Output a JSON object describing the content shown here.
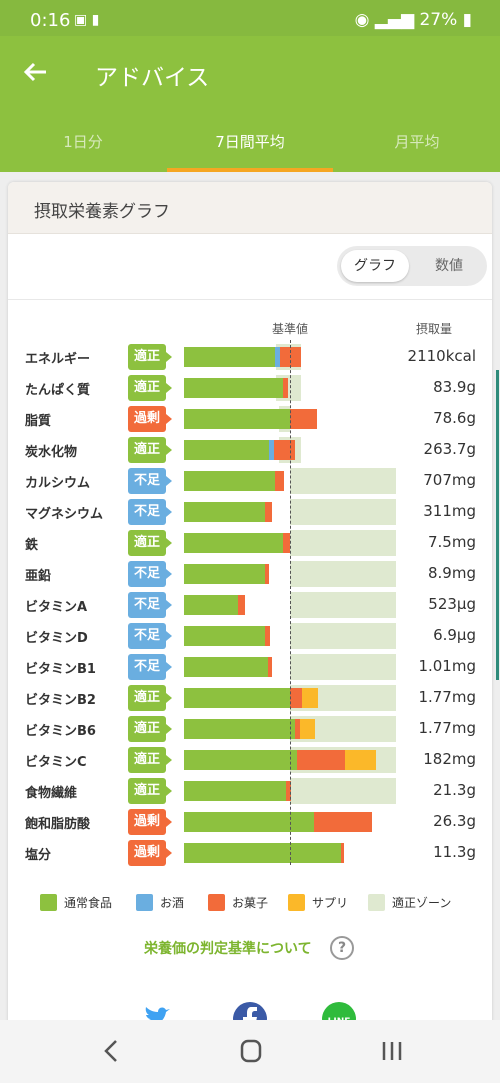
{
  "status": {
    "time": "0:16",
    "battery": "27%"
  },
  "appbar": {
    "title": "アドバイス"
  },
  "tabs": [
    {
      "label": "1日分",
      "active": false
    },
    {
      "label": "7日間平均",
      "active": true
    },
    {
      "label": "月平均",
      "active": false
    }
  ],
  "card": {
    "title": "摂取栄養素グラフ"
  },
  "toggle": {
    "graph": "グラフ",
    "value": "数値",
    "selected": "グラフ"
  },
  "headers": {
    "base": "基準値",
    "intake": "摂取量"
  },
  "status_colors": {
    "適正": "#8dc13f",
    "過剰": "#f26b3a",
    "不足": "#6aaee0"
  },
  "colors": {
    "food": "#8dc13f",
    "alcohol": "#6aaee0",
    "snack": "#f26b3a",
    "supplement": "#fbb829",
    "zone": "#dfe9d0"
  },
  "nutrients": [
    {
      "name": "エネルギー",
      "status": "適正",
      "amount": "2110kcal",
      "food": 0.86,
      "alcohol": 0.05,
      "snack": 0.19,
      "supplement": 0,
      "zone": [
        0.87,
        1.1
      ]
    },
    {
      "name": "たんぱく質",
      "status": "適正",
      "amount": "83.9g",
      "food": 0.93,
      "alcohol": 0,
      "snack": 0.05,
      "supplement": 0,
      "zone": [
        0.87,
        1.1
      ]
    },
    {
      "name": "脂質",
      "status": "過剰",
      "amount": "78.6g",
      "food": 1.0,
      "alcohol": 0,
      "snack": 0.25,
      "supplement": 0,
      "zone": [
        0.9,
        1.0
      ]
    },
    {
      "name": "炭水化物",
      "status": "適正",
      "amount": "263.7g",
      "food": 0.8,
      "alcohol": 0.05,
      "snack": 0.2,
      "supplement": 0,
      "zone": [
        0.9,
        1.1
      ]
    },
    {
      "name": "カルシウム",
      "status": "不足",
      "amount": "707mg",
      "food": 0.86,
      "alcohol": 0,
      "snack": 0.08,
      "supplement": 0,
      "zone": [
        1.0,
        2.0
      ]
    },
    {
      "name": "マグネシウム",
      "status": "不足",
      "amount": "311mg",
      "food": 0.76,
      "alcohol": 0,
      "snack": 0.07,
      "supplement": 0,
      "zone": [
        1.0,
        2.0
      ]
    },
    {
      "name": "鉄",
      "status": "適正",
      "amount": "7.5mg",
      "food": 0.93,
      "alcohol": 0,
      "snack": 0.07,
      "supplement": 0,
      "zone": [
        1.0,
        2.0
      ]
    },
    {
      "name": "亜鉛",
      "status": "不足",
      "amount": "8.9mg",
      "food": 0.76,
      "alcohol": 0,
      "snack": 0.04,
      "supplement": 0,
      "zone": [
        1.0,
        2.0
      ]
    },
    {
      "name": "ビタミンA",
      "status": "不足",
      "amount": "523μg",
      "food": 0.51,
      "alcohol": 0,
      "snack": 0.07,
      "supplement": 0,
      "zone": [
        1.0,
        2.0
      ]
    },
    {
      "name": "ビタミンD",
      "status": "不足",
      "amount": "6.9μg",
      "food": 0.76,
      "alcohol": 0,
      "snack": 0.05,
      "supplement": 0,
      "zone": [
        1.0,
        2.0
      ]
    },
    {
      "name": "ビタミンB1",
      "status": "不足",
      "amount": "1.01mg",
      "food": 0.79,
      "alcohol": 0,
      "snack": 0.04,
      "supplement": 0,
      "zone": [
        1.0,
        2.0
      ]
    },
    {
      "name": "ビタミンB2",
      "status": "適正",
      "amount": "1.77mg",
      "food": 1.0,
      "alcohol": 0,
      "snack": 0.11,
      "supplement": 0.15,
      "zone": [
        1.0,
        2.0
      ]
    },
    {
      "name": "ビタミンB6",
      "status": "適正",
      "amount": "1.77mg",
      "food": 1.05,
      "alcohol": 0,
      "snack": 0.04,
      "supplement": 0.15,
      "zone": [
        1.0,
        2.0
      ]
    },
    {
      "name": "ビタミンC",
      "status": "適正",
      "amount": "182mg",
      "food": 1.07,
      "alcohol": 0,
      "snack": 0.45,
      "supplement": 0.29,
      "zone": [
        1.0,
        2.0
      ]
    },
    {
      "name": "食物繊維",
      "status": "適正",
      "amount": "21.3g",
      "food": 0.96,
      "alcohol": 0,
      "snack": 0.05,
      "supplement": 0,
      "zone": [
        1.0,
        2.0
      ]
    },
    {
      "name": "飽和脂肪酸",
      "status": "過剰",
      "amount": "26.3g",
      "food": 1.23,
      "alcohol": 0,
      "snack": 0.54,
      "supplement": 0,
      "zone": [
        0,
        0
      ]
    },
    {
      "name": "塩分",
      "status": "過剰",
      "amount": "11.3g",
      "food": 1.48,
      "alcohol": 0,
      "snack": 0.03,
      "supplement": 0,
      "zone": [
        0,
        0
      ]
    }
  ],
  "legend": [
    {
      "label": "通常食品",
      "color": "#8dc13f"
    },
    {
      "label": "お酒",
      "color": "#6aaee0"
    },
    {
      "label": "お菓子",
      "color": "#f26b3a"
    },
    {
      "label": "サプリ",
      "color": "#fbb829"
    },
    {
      "label": "適正ゾーン",
      "color": "#dfe9d0"
    }
  ],
  "criteria_link": "栄養価の判定基準について",
  "share": [
    {
      "name": "twitter-icon",
      "color": "#3fa2f2"
    },
    {
      "name": "facebook-icon",
      "color": "#3b5aa6"
    },
    {
      "name": "line-icon",
      "color": "#2fbb3c"
    }
  ]
}
